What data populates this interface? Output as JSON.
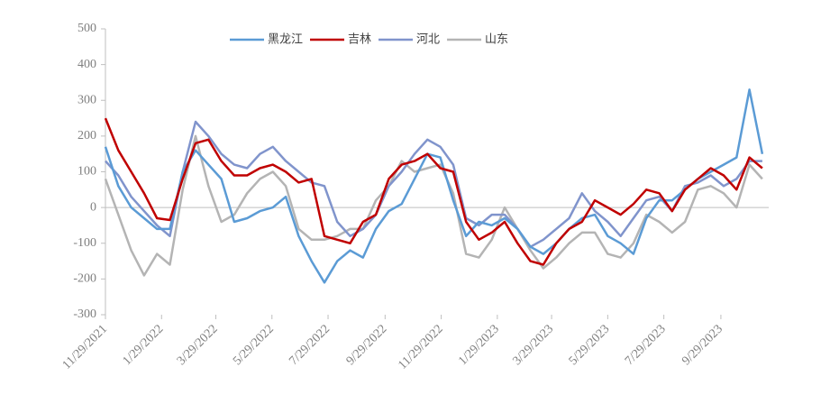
{
  "chart_data": {
    "type": "line",
    "x": [
      "11/29/2021",
      "12/13/2021",
      "12/27/2021",
      "1/10/2022",
      "1/24/2022",
      "2/7/2022",
      "2/21/2022",
      "3/7/2022",
      "3/21/2022",
      "4/4/2022",
      "4/18/2022",
      "5/2/2022",
      "5/16/2022",
      "5/30/2022",
      "6/13/2022",
      "6/27/2022",
      "7/11/2022",
      "7/25/2022",
      "8/8/2022",
      "8/22/2022",
      "9/5/2022",
      "9/19/2022",
      "10/3/2022",
      "10/17/2022",
      "10/31/2022",
      "11/14/2022",
      "11/28/2022",
      "12/12/2022",
      "12/26/2022",
      "1/9/2023",
      "1/23/2023",
      "2/6/2023",
      "2/20/2023",
      "3/6/2023",
      "3/20/2023",
      "4/3/2023",
      "4/17/2023",
      "5/1/2023",
      "5/15/2023",
      "5/29/2023",
      "6/12/2023",
      "6/26/2023",
      "7/10/2023",
      "7/24/2023",
      "8/7/2023",
      "8/21/2023",
      "9/4/2023",
      "9/18/2023",
      "10/2/2023",
      "10/16/2023",
      "10/30/2023",
      "11/13/2023"
    ],
    "series": [
      {
        "name": "黑龙江",
        "color": "#5b9bd5",
        "values": [
          170,
          60,
          0,
          -30,
          -60,
          -60,
          100,
          160,
          120,
          80,
          -40,
          -30,
          -10,
          0,
          30,
          -80,
          -150,
          -210,
          -150,
          -120,
          -140,
          -60,
          -10,
          10,
          80,
          150,
          140,
          20,
          -80,
          -40,
          -50,
          -30,
          -60,
          -110,
          -130,
          -100,
          -60,
          -30,
          -20,
          -80,
          -100,
          -130,
          -30,
          20,
          20,
          50,
          80,
          100,
          120,
          140,
          330,
          150
        ]
      },
      {
        "name": "吉林",
        "color": "#c00000",
        "values": [
          250,
          160,
          100,
          40,
          -30,
          -35,
          80,
          180,
          190,
          130,
          90,
          90,
          110,
          120,
          100,
          70,
          80,
          -80,
          -90,
          -100,
          -40,
          -20,
          80,
          120,
          130,
          150,
          110,
          100,
          -40,
          -90,
          -70,
          -40,
          -100,
          -150,
          -160,
          -100,
          -60,
          -40,
          20,
          0,
          -20,
          10,
          50,
          40,
          -10,
          50,
          80,
          110,
          90,
          50,
          140,
          110
        ]
      },
      {
        "name": "河北",
        "color": "#8094cc",
        "values": [
          130,
          90,
          30,
          -10,
          -50,
          -80,
          100,
          240,
          200,
          150,
          120,
          110,
          150,
          170,
          130,
          100,
          70,
          60,
          -40,
          -80,
          -60,
          -20,
          60,
          100,
          150,
          190,
          170,
          120,
          -30,
          -50,
          -20,
          -20,
          -60,
          -110,
          -90,
          -60,
          -30,
          40,
          -10,
          -40,
          -80,
          -30,
          20,
          30,
          -10,
          60,
          70,
          90,
          60,
          80,
          130,
          130
        ]
      },
      {
        "name": "山东",
        "color": "#b4b4b4",
        "values": [
          80,
          -20,
          -120,
          -190,
          -130,
          -160,
          50,
          200,
          60,
          -40,
          -20,
          40,
          80,
          100,
          60,
          -60,
          -90,
          -90,
          -80,
          -60,
          -60,
          20,
          60,
          130,
          100,
          110,
          120,
          40,
          -130,
          -140,
          -90,
          0,
          -60,
          -120,
          -170,
          -140,
          -100,
          -70,
          -70,
          -130,
          -140,
          -100,
          -20,
          -40,
          -70,
          -40,
          50,
          60,
          40,
          0,
          120,
          80
        ]
      }
    ],
    "xlim": [
      "11/29/2021",
      "11/20/2023"
    ],
    "xticks": [
      "11/29/2021",
      "1/29/2022",
      "3/29/2022",
      "5/29/2022",
      "7/29/2022",
      "9/29/2022",
      "11/29/2022",
      "1/29/2023",
      "3/29/2023",
      "5/29/2023",
      "7/29/2023",
      "9/29/2023"
    ],
    "ylim": [
      -300,
      500
    ],
    "yticks": [
      -300,
      -200,
      -100,
      0,
      100,
      200,
      300,
      400,
      500
    ]
  }
}
